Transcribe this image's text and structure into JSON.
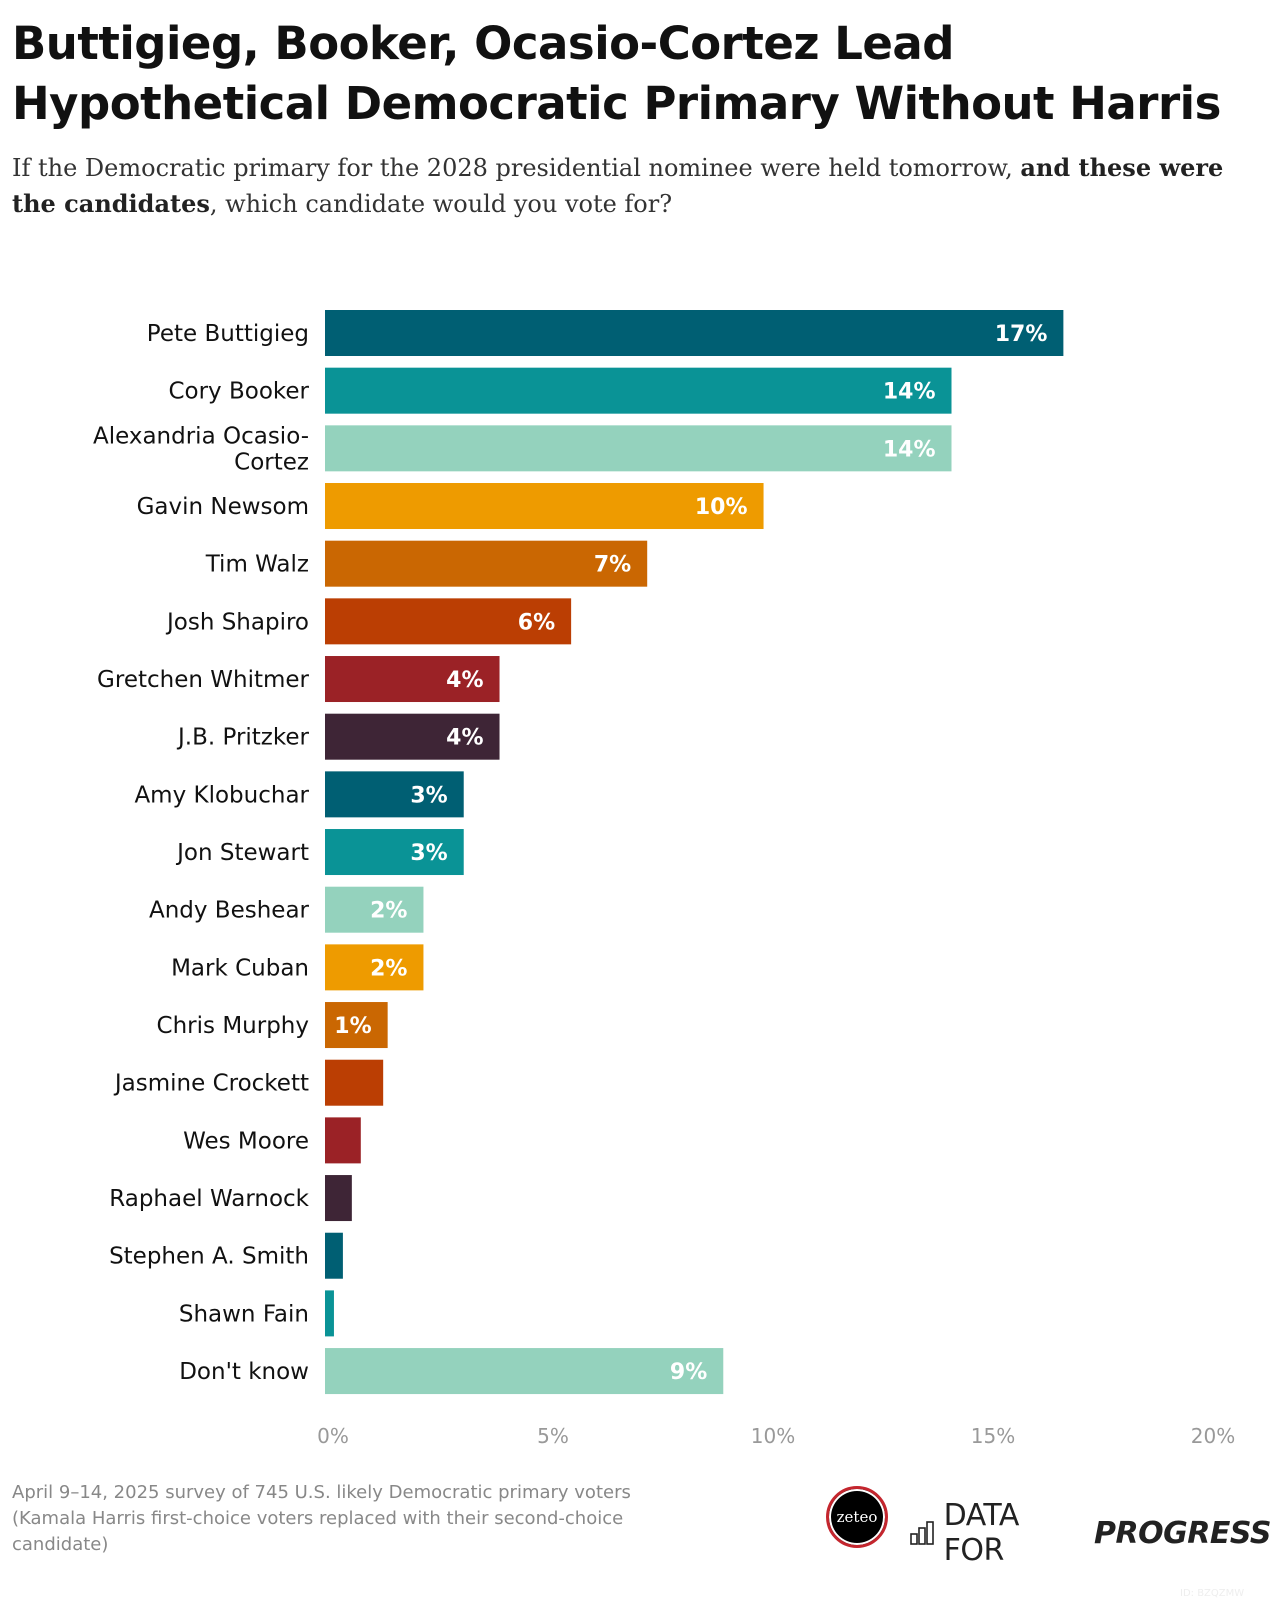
{
  "title": "Buttigieg, Booker, Ocasio-Cortez Lead Hypothetical Democratic Primary Without Harris",
  "subtitle_part1": "If the Democratic primary for the 2028 presidential nominee were held tomorrow, ",
  "subtitle_bold": "and these were the candidates",
  "subtitle_part2": ", which candidate would you vote for?",
  "footnote": "April 9–14, 2025 survey of 745 U.S. likely Democratic primary voters (Kamala Harris first-choice voters replaced with their second-choice candidate)",
  "logos": {
    "zeteo": "zeteo",
    "dfp_light": "DATA FOR",
    "dfp_bold": "PROGRESS"
  },
  "chart_id": "ID: BZQZMW",
  "chart_data": {
    "type": "bar",
    "orientation": "horizontal",
    "categories": [
      "Pete Buttigieg",
      "Cory Booker",
      "Alexandria Ocasio-Cortez",
      "Gavin Newsom",
      "Tim Walz",
      "Josh Shapiro",
      "Gretchen Whitmer",
      "J.B. Pritzker",
      "Amy Klobuchar",
      "Jon Stewart",
      "Andy Beshear",
      "Mark Cuban",
      "Chris Murphy",
      "Jasmine Crockett",
      "Wes Moore",
      "Raphael Warnock",
      "Stephen A. Smith",
      "Shawn Fain",
      "Don't know"
    ],
    "category_lines": [
      [
        "Pete Buttigieg"
      ],
      [
        "Cory Booker"
      ],
      [
        "Alexandria Ocasio-",
        "Cortez"
      ],
      [
        "Gavin Newsom"
      ],
      [
        "Tim Walz"
      ],
      [
        "Josh Shapiro"
      ],
      [
        "Gretchen Whitmer"
      ],
      [
        "J.B. Pritzker"
      ],
      [
        "Amy Klobuchar"
      ],
      [
        "Jon Stewart"
      ],
      [
        "Andy Beshear"
      ],
      [
        "Mark Cuban"
      ],
      [
        "Chris Murphy"
      ],
      [
        "Jasmine Crockett"
      ],
      [
        "Wes Moore"
      ],
      [
        "Raphael Warnock"
      ],
      [
        "Stephen A. Smith"
      ],
      [
        "Shawn Fain"
      ],
      [
        "Don't know"
      ]
    ],
    "values": [
      16.5,
      14.0,
      14.0,
      9.8,
      7.2,
      5.5,
      3.9,
      3.9,
      3.1,
      3.1,
      2.2,
      2.2,
      1.4,
      1.3,
      0.8,
      0.6,
      0.4,
      0.2,
      8.9
    ],
    "data_labels": [
      "17%",
      "14%",
      "14%",
      "10%",
      "7%",
      "6%",
      "4%",
      "4%",
      "3%",
      "3%",
      "2%",
      "2%",
      "1%",
      null,
      null,
      null,
      null,
      null,
      "9%"
    ],
    "colors": [
      "#005f73",
      "#0a9396",
      "#94d2bd",
      "#ee9b00",
      "#ca6702",
      "#bb3e03",
      "#9b2226",
      "#3e2536",
      "#005f73",
      "#0a9396",
      "#94d2bd",
      "#ee9b00",
      "#ca6702",
      "#bb3e03",
      "#9b2226",
      "#3e2536",
      "#005f73",
      "#0a9396",
      "#94d2bd"
    ],
    "xlim": [
      0,
      20
    ],
    "xticks": [
      0,
      5,
      10,
      15,
      20
    ],
    "xtick_labels": [
      "0%",
      "5%",
      "10%",
      "15%",
      "20%"
    ],
    "grid": false,
    "legend": "none"
  }
}
